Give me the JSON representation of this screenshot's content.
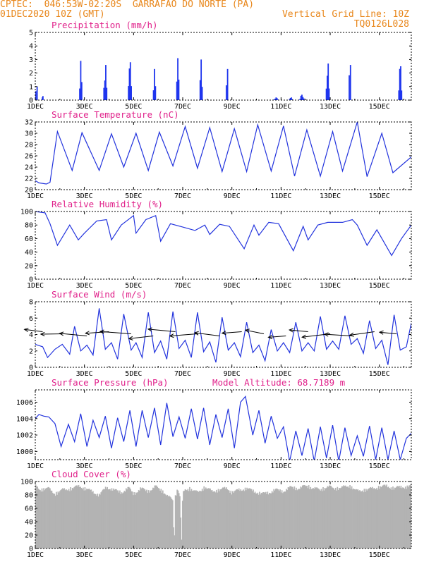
{
  "header": {
    "line1_left": "CPTEC:  046:53W-02:20S  GARRAFAO DO NORTE (PA)",
    "line2_left": "01DEC2020 10Z (GMT)",
    "line2_right": "Vertical Grid Line: 10Z",
    "line3_right": "TQ0126L028",
    "altitude_label": "Model Altitude: 68.7189 m"
  },
  "colors": {
    "header_text": "#e8861a",
    "panel_title": "#e0208a",
    "series_line": "#2233dd",
    "bars": "#1f35ee",
    "cloud_fill": "#b3b3b3",
    "axis": "#000000"
  },
  "x_axis": {
    "range_days": [
      1,
      16.3
    ],
    "tick_labels": [
      "1DEC",
      "3DEC",
      "5DEC",
      "7DEC",
      "9DEC",
      "11DEC",
      "13DEC",
      "15DEC"
    ],
    "tick_days": [
      1,
      3,
      5,
      7,
      9,
      11,
      13,
      15
    ]
  },
  "chart_data": [
    {
      "type": "bar",
      "title": "Precipitation (mm/h)",
      "ylim": [
        0,
        5
      ],
      "yticks": [
        0,
        1,
        2,
        3,
        4,
        5
      ],
      "events": [
        [
          1.05,
          1.0,
          0.1
        ],
        [
          1.3,
          0.3,
          0.05
        ],
        [
          2.85,
          2.9,
          0.12
        ],
        [
          3.85,
          2.6,
          0.15
        ],
        [
          4.85,
          2.8,
          0.15
        ],
        [
          5.85,
          2.3,
          0.12
        ],
        [
          6.8,
          3.1,
          0.12
        ],
        [
          7.75,
          3.0,
          0.12
        ],
        [
          8.8,
          2.3,
          0.1
        ],
        [
          10.8,
          0.2,
          0.2
        ],
        [
          11.4,
          0.2,
          0.15
        ],
        [
          11.85,
          0.4,
          0.2
        ],
        [
          12.9,
          2.7,
          0.15
        ],
        [
          13.8,
          2.6,
          0.1
        ],
        [
          15.85,
          2.5,
          0.15
        ]
      ]
    },
    {
      "type": "line",
      "title": "Surface Temperature (nC)",
      "ylim": [
        20,
        32
      ],
      "yticks": [
        20,
        22,
        24,
        26,
        28,
        30,
        32
      ],
      "x": [
        1.0,
        1.15,
        1.45,
        1.6,
        1.9,
        2.5,
        2.9,
        3.6,
        4.1,
        4.6,
        5.1,
        5.6,
        6.05,
        6.6,
        7.1,
        7.6,
        8.1,
        8.6,
        9.1,
        9.6,
        10.05,
        10.6,
        11.1,
        11.55,
        12.05,
        12.6,
        13.1,
        13.5,
        14.1,
        14.5,
        15.1,
        15.55,
        16.3
      ],
      "values": [
        21.6,
        21.2,
        21.0,
        21.3,
        30.3,
        23.4,
        30.1,
        23.4,
        29.9,
        24.0,
        30.0,
        23.4,
        30.2,
        24.2,
        31.2,
        23.8,
        31.0,
        23.2,
        30.8,
        23.2,
        31.5,
        23.3,
        31.3,
        22.4,
        30.6,
        22.4,
        30.3,
        23.3,
        32.0,
        22.3,
        30.0,
        23.0,
        25.8
      ]
    },
    {
      "type": "line",
      "title": "Relative Humidity (%)",
      "ylim": [
        0,
        100
      ],
      "yticks": [
        0,
        20,
        40,
        60,
        80,
        100
      ],
      "x": [
        1.0,
        1.4,
        1.6,
        1.9,
        2.4,
        2.75,
        3.0,
        3.5,
        3.9,
        4.1,
        4.5,
        5.0,
        5.1,
        5.5,
        5.9,
        6.1,
        6.5,
        6.9,
        7.5,
        7.9,
        8.1,
        8.5,
        8.9,
        9.5,
        9.9,
        10.1,
        10.5,
        10.9,
        11.5,
        11.9,
        12.1,
        12.5,
        12.9,
        13.5,
        13.9,
        14.1,
        14.5,
        14.9,
        15.5,
        15.9,
        16.3
      ],
      "values": [
        100,
        98,
        82,
        50,
        80,
        58,
        68,
        86,
        88,
        58,
        80,
        94,
        68,
        88,
        94,
        56,
        82,
        78,
        72,
        80,
        66,
        81,
        78,
        45,
        80,
        65,
        84,
        82,
        42,
        78,
        58,
        80,
        84,
        84,
        88,
        80,
        50,
        73,
        35,
        60,
        80
      ]
    },
    {
      "type": "line",
      "title": "Surface Wind (m/s)",
      "ylim": [
        0,
        8
      ],
      "yticks": [
        0,
        2,
        4,
        6,
        8
      ],
      "x": [
        1.0,
        1.3,
        1.5,
        1.8,
        2.1,
        2.4,
        2.6,
        2.85,
        3.1,
        3.35,
        3.6,
        3.85,
        4.1,
        4.35,
        4.6,
        4.9,
        5.1,
        5.35,
        5.6,
        5.85,
        6.1,
        6.35,
        6.6,
        6.85,
        7.1,
        7.35,
        7.6,
        7.85,
        8.1,
        8.35,
        8.6,
        8.85,
        9.1,
        9.35,
        9.6,
        9.85,
        10.1,
        10.35,
        10.6,
        10.85,
        11.1,
        11.35,
        11.6,
        11.85,
        12.1,
        12.35,
        12.6,
        12.85,
        13.1,
        13.35,
        13.6,
        13.85,
        14.1,
        14.35,
        14.6,
        14.85,
        15.1,
        15.35,
        15.6,
        15.85,
        16.1,
        16.3
      ],
      "values": [
        2.8,
        2.5,
        1.2,
        2.2,
        2.8,
        1.6,
        5.0,
        2.0,
        2.7,
        1.5,
        7.2,
        2.2,
        3.0,
        1.0,
        6.5,
        2.1,
        3.0,
        1.2,
        6.7,
        1.8,
        3.2,
        1.0,
        6.8,
        2.3,
        3.3,
        1.2,
        6.7,
        1.9,
        3.1,
        0.6,
        6.1,
        2.1,
        3.0,
        1.3,
        5.5,
        1.8,
        2.7,
        0.8,
        4.6,
        2.0,
        3.0,
        1.8,
        5.5,
        2.0,
        3.0,
        2.0,
        6.2,
        2.2,
        3.2,
        2.2,
        6.3,
        2.8,
        3.5,
        1.7,
        5.7,
        2.3,
        3.3,
        0.3,
        6.4,
        2.1,
        2.5,
        5.4
      ],
      "arrows_x": [
        1.3,
        2.2,
        3.1,
        4.0,
        4.9,
        5.8,
        6.7,
        7.6,
        8.5,
        9.4,
        10.3,
        11.2,
        12.1,
        13.0,
        13.9,
        14.8,
        15.7
      ],
      "arrows_angle_deg": [
        160,
        155,
        165,
        162,
        168,
        170,
        165,
        168,
        160,
        158,
        150,
        155,
        165,
        175,
        170,
        175,
        165
      ],
      "arrows_len": [
        0.55,
        0.75,
        0.8,
        0.7,
        0.9,
        0.7,
        0.8,
        0.8,
        0.75,
        0.6,
        0.6,
        0.55,
        0.55,
        0.8,
        0.8,
        0.7,
        0.5
      ]
    },
    {
      "type": "line",
      "title": "Surface Pressure (hPa)",
      "ylim": [
        999,
        1007.5
      ],
      "yticks": [
        1000,
        1002,
        1004,
        1006
      ],
      "x": [
        1.0,
        1.15,
        1.35,
        1.55,
        1.8,
        2.05,
        2.35,
        2.6,
        2.85,
        3.1,
        3.35,
        3.6,
        3.85,
        4.1,
        4.35,
        4.6,
        4.85,
        5.1,
        5.35,
        5.6,
        5.85,
        6.1,
        6.35,
        6.6,
        6.85,
        7.1,
        7.35,
        7.6,
        7.85,
        8.1,
        8.35,
        8.6,
        8.85,
        9.1,
        9.35,
        9.55,
        9.85,
        10.1,
        10.35,
        10.6,
        10.85,
        11.1,
        11.35,
        11.6,
        11.85,
        12.1,
        12.35,
        12.6,
        12.85,
        13.1,
        13.35,
        13.6,
        13.85,
        14.1,
        14.35,
        14.6,
        14.85,
        15.1,
        15.35,
        15.6,
        15.85,
        16.1,
        16.3
      ],
      "values": [
        1004.0,
        1004.5,
        1004.3,
        1004.2,
        1003.4,
        1000.6,
        1003.3,
        1001.2,
        1004.6,
        1000.6,
        1003.8,
        1001.7,
        1004.3,
        1000.4,
        1004.1,
        1001.2,
        1005.0,
        1000.6,
        1005.0,
        1001.7,
        1005.3,
        1000.8,
        1005.9,
        1001.8,
        1004.2,
        1001.6,
        1005.2,
        1001.5,
        1005.3,
        1000.8,
        1004.5,
        1001.7,
        1005.2,
        1000.4,
        1006.0,
        1006.7,
        1002.0,
        1005.0,
        1001.0,
        1004.3,
        1001.6,
        1003.0,
        998.8,
        1002.5,
        999.5,
        1002.8,
        998.8,
        1003.0,
        999.2,
        1003.2,
        998.8,
        1002.9,
        999.5,
        1001.9,
        999.4,
        1003.1,
        999.0,
        1002.9,
        999.0,
        1002.5,
        999.0,
        1001.6,
        1002.2
      ]
    },
    {
      "type": "area",
      "title": "Cloud Cover (%)",
      "ylim": [
        0,
        100
      ],
      "yticks": [
        0,
        20,
        40,
        60,
        80,
        100
      ],
      "x": [
        1.0,
        1.2,
        1.5,
        1.8,
        2.1,
        2.5,
        2.8,
        3.0,
        3.3,
        3.6,
        3.9,
        4.2,
        4.5,
        4.8,
        5.0,
        5.3,
        5.6,
        5.9,
        6.2,
        6.4,
        6.6,
        6.65,
        6.7,
        6.8,
        6.9,
        6.95,
        7.0,
        7.1,
        7.3,
        7.6,
        7.9,
        8.2,
        8.5,
        8.8,
        9.0,
        9.3,
        9.6,
        9.9,
        10.2,
        10.5,
        10.8,
        11.1,
        11.4,
        11.7,
        12.0,
        12.3,
        12.6,
        12.9,
        13.2,
        13.5,
        13.8,
        14.1,
        14.4,
        14.7,
        15.0,
        15.3,
        15.6,
        15.9,
        16.1,
        16.3
      ],
      "values": [
        96,
        90,
        93,
        84,
        90,
        92,
        96,
        92,
        88,
        82,
        94,
        90,
        86,
        93,
        84,
        92,
        88,
        95,
        88,
        80,
        75,
        2,
        80,
        93,
        78,
        4,
        84,
        90,
        92,
        86,
        94,
        88,
        90,
        93,
        86,
        90,
        92,
        88,
        84,
        86,
        90,
        88,
        94,
        92,
        96,
        93,
        90,
        95,
        92,
        94,
        96,
        88,
        90,
        92,
        94,
        96,
        92,
        95,
        94,
        96
      ]
    }
  ]
}
